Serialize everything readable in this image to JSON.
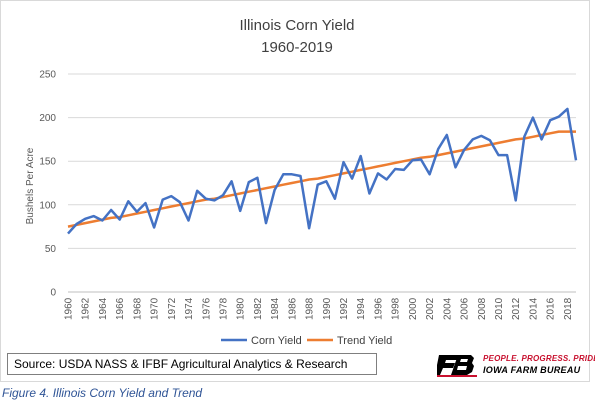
{
  "chart_data": {
    "type": "line",
    "title": "Illinois Corn Yield",
    "subtitle": "1960-2019",
    "ylabel": "Bushels Per Acre",
    "xlabel": "",
    "ylim": [
      0,
      250
    ],
    "yticks": [
      "0",
      "50",
      "100",
      "150",
      "200",
      "250"
    ],
    "xticks": [
      "1960",
      "1962",
      "1964",
      "1966",
      "1968",
      "1970",
      "1972",
      "1974",
      "1976",
      "1978",
      "1980",
      "1982",
      "1984",
      "1986",
      "1988",
      "1990",
      "1992",
      "1994",
      "1996",
      "1998",
      "2000",
      "2002",
      "2004",
      "2006",
      "2008",
      "2010",
      "2012",
      "2014",
      "2016",
      "2018"
    ],
    "grid": "horizontal",
    "legend_position": "bottom",
    "x": [
      1960,
      1961,
      1962,
      1963,
      1964,
      1965,
      1966,
      1967,
      1968,
      1969,
      1970,
      1971,
      1972,
      1973,
      1974,
      1975,
      1976,
      1977,
      1978,
      1979,
      1980,
      1981,
      1982,
      1983,
      1984,
      1985,
      1986,
      1987,
      1988,
      1989,
      1990,
      1991,
      1992,
      1993,
      1994,
      1995,
      1996,
      1997,
      1998,
      1999,
      2000,
      2001,
      2002,
      2003,
      2004,
      2005,
      2006,
      2007,
      2008,
      2009,
      2010,
      2011,
      2012,
      2013,
      2014,
      2015,
      2016,
      2017,
      2018,
      2019
    ],
    "series": [
      {
        "name": "Corn Yield",
        "color": "#4472c4",
        "values": [
          67,
          78,
          84,
          87,
          82,
          94,
          83,
          104,
          92,
          102,
          74,
          106,
          110,
          103,
          82,
          116,
          107,
          105,
          111,
          127,
          93,
          126,
          131,
          79,
          117,
          135,
          135,
          133,
          73,
          123,
          127,
          107,
          149,
          130,
          156,
          113,
          136,
          129,
          141,
          140,
          151,
          152,
          135,
          164,
          180,
          143,
          163,
          175,
          179,
          174,
          157,
          157,
          105,
          178,
          200,
          175,
          197,
          201,
          210,
          151
        ]
      },
      {
        "name": "Trend Yield",
        "color": "#ed7d31",
        "values": [
          75,
          77,
          79,
          81,
          83,
          85,
          86,
          88,
          90,
          92,
          94,
          96,
          98,
          100,
          102,
          104,
          106,
          107,
          109,
          111,
          113,
          115,
          117,
          119,
          121,
          123,
          125,
          127,
          129,
          130,
          132,
          134,
          136,
          138,
          140,
          142,
          144,
          146,
          148,
          150,
          152,
          154,
          155,
          157,
          159,
          161,
          163,
          165,
          167,
          169,
          171,
          173,
          175,
          176,
          178,
          180,
          182,
          184,
          184,
          184
        ]
      }
    ]
  },
  "source": "Source: USDA NASS & IFBF Agricultural Analytics & Research",
  "logo": {
    "tagline": "PEOPLE. PROGRESS. PRIDE.",
    "name": "IOWA FARM BUREAU",
    "mark": "FB"
  },
  "caption": "Figure 4. Illinois Corn Yield and Trend"
}
